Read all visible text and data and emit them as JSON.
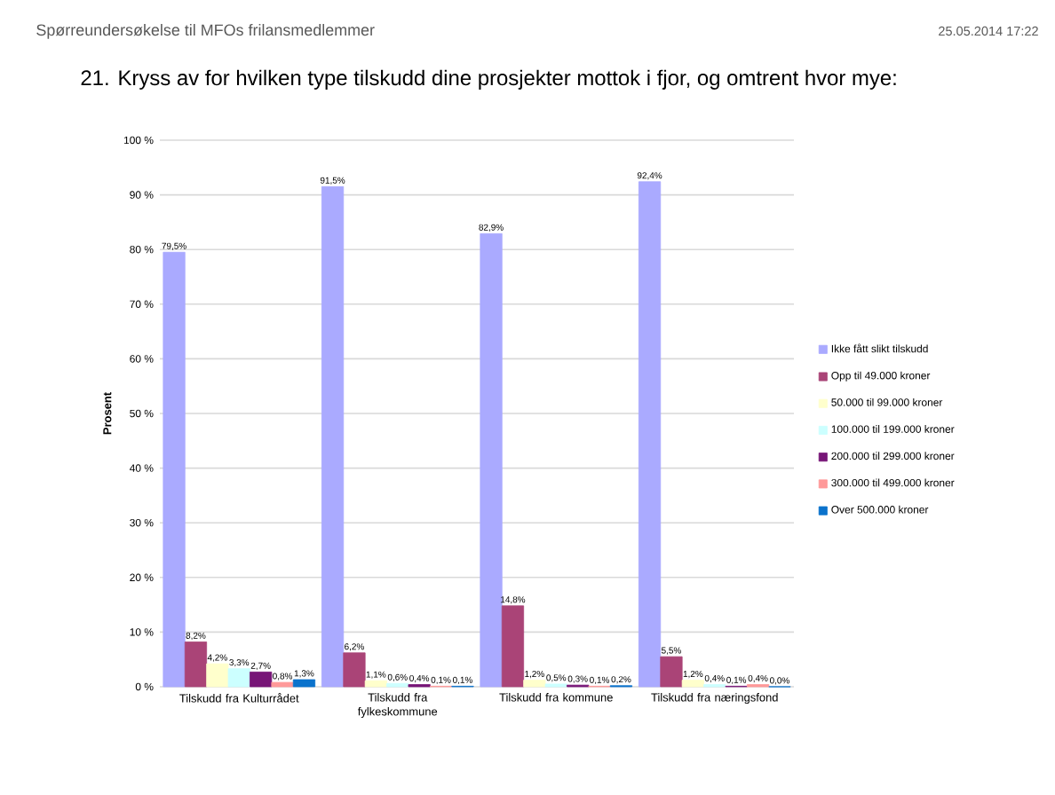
{
  "chart_data": {
    "type": "bar",
    "title": "21. Kryss av for hvilken type tilskudd dine prosjekter mottok i fjor, og omtrent hvor mye:",
    "annotations": [
      "Spørreundersøkelse til MFOs frilansmedlemmer",
      "25.05.2014 17:22"
    ],
    "categories": [
      "Tilskudd fra Kulturrådet",
      "Tilskudd fra fylkeskommune",
      "Tilskudd fra kommune",
      "Tilskudd fra næringsfond"
    ],
    "ylabel": "Prosent",
    "ylim": [
      0,
      100
    ],
    "yticks": [
      {
        "value": 0,
        "label": "0 %"
      },
      {
        "value": 10,
        "label": "10 %"
      },
      {
        "value": 20,
        "label": "20 %"
      },
      {
        "value": 30,
        "label": "30 %"
      },
      {
        "value": 40,
        "label": "40 %"
      },
      {
        "value": 50,
        "label": "50 %"
      },
      {
        "value": 60,
        "label": "60 %"
      },
      {
        "value": 70,
        "label": "70 %"
      },
      {
        "value": 80,
        "label": "80 %"
      },
      {
        "value": 90,
        "label": "90 %"
      },
      {
        "value": 100,
        "label": "100 %"
      }
    ],
    "grid": "y",
    "legend": "right",
    "series": [
      {
        "name": "Ikke fått slikt tilskudd",
        "color": "#aaaaff",
        "values": [
          79.5,
          91.5,
          82.9,
          92.4
        ],
        "value_labels": [
          "79,5%",
          "91,5%",
          "82,9%",
          "92,4%"
        ]
      },
      {
        "name": "Opp til 49.000 kroner",
        "color": "#aa4477",
        "values": [
          8.2,
          6.2,
          14.8,
          5.5
        ],
        "value_labels": [
          "8,2%",
          "6,2%",
          "14,8%",
          "5,5%"
        ]
      },
      {
        "name": "50.000 til 99.000 kroner",
        "color": "#ffffcc",
        "values": [
          4.2,
          1.1,
          1.2,
          1.2
        ],
        "value_labels": [
          "4,2%",
          "1,1%",
          "1,2%",
          "1,2%"
        ]
      },
      {
        "name": "100.000 til 199.000 kroner",
        "color": "#ccffff",
        "values": [
          3.3,
          0.6,
          0.5,
          0.4
        ],
        "value_labels": [
          "3,3%",
          "0,6%",
          "0,5%",
          "0,4%"
        ]
      },
      {
        "name": "200.000 til 299.000 kroner",
        "color": "#771577",
        "values": [
          2.7,
          0.4,
          0.3,
          0.1
        ],
        "value_labels": [
          "2,7%",
          "0,4%",
          "0,3%",
          "0,1%"
        ]
      },
      {
        "name": "300.000 til 499.000 kroner",
        "color": "#ff9999",
        "values": [
          0.8,
          0.1,
          0.1,
          0.4
        ],
        "value_labels": [
          "0,8%",
          "0,1%",
          "0,1%",
          "0,4%"
        ]
      },
      {
        "name": "Over 500.000 kroner",
        "color": "#0a72cc",
        "values": [
          1.3,
          0.1,
          0.2,
          0.0
        ],
        "value_labels": [
          "1,3%",
          "0,1%",
          "0,2%",
          "0,0%"
        ]
      }
    ]
  }
}
